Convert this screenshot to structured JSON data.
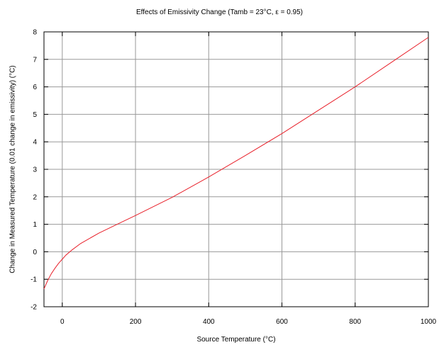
{
  "chart_data": {
    "type": "line",
    "title": "Effects of Emissivity Change (Tamb = 23°C, ε = 0.95)",
    "xlabel": "Source Temperature (°C)",
    "ylabel": "Change in Measured Temperature (0.01 change in emissivity) (°C)",
    "xlim": [
      -50,
      1000
    ],
    "ylim": [
      -2,
      8
    ],
    "xticks": [
      0,
      200,
      400,
      600,
      800,
      1000
    ],
    "yticks": [
      -2,
      -1,
      0,
      1,
      2,
      3,
      4,
      5,
      6,
      7,
      8
    ],
    "grid": true,
    "legend": "none",
    "series": [
      {
        "color": "#e8202a",
        "x": [
          -50,
          -40,
          -30,
          -20,
          -10,
          0,
          10,
          25,
          50,
          100,
          150,
          200,
          300,
          400,
          500,
          600,
          700,
          800,
          900,
          1000
        ],
        "y": [
          -1.35,
          -1.05,
          -0.8,
          -0.6,
          -0.42,
          -0.27,
          -0.12,
          0.05,
          0.3,
          0.68,
          1.0,
          1.32,
          1.98,
          2.72,
          3.5,
          4.3,
          5.15,
          6.0,
          6.9,
          7.8
        ]
      }
    ]
  }
}
